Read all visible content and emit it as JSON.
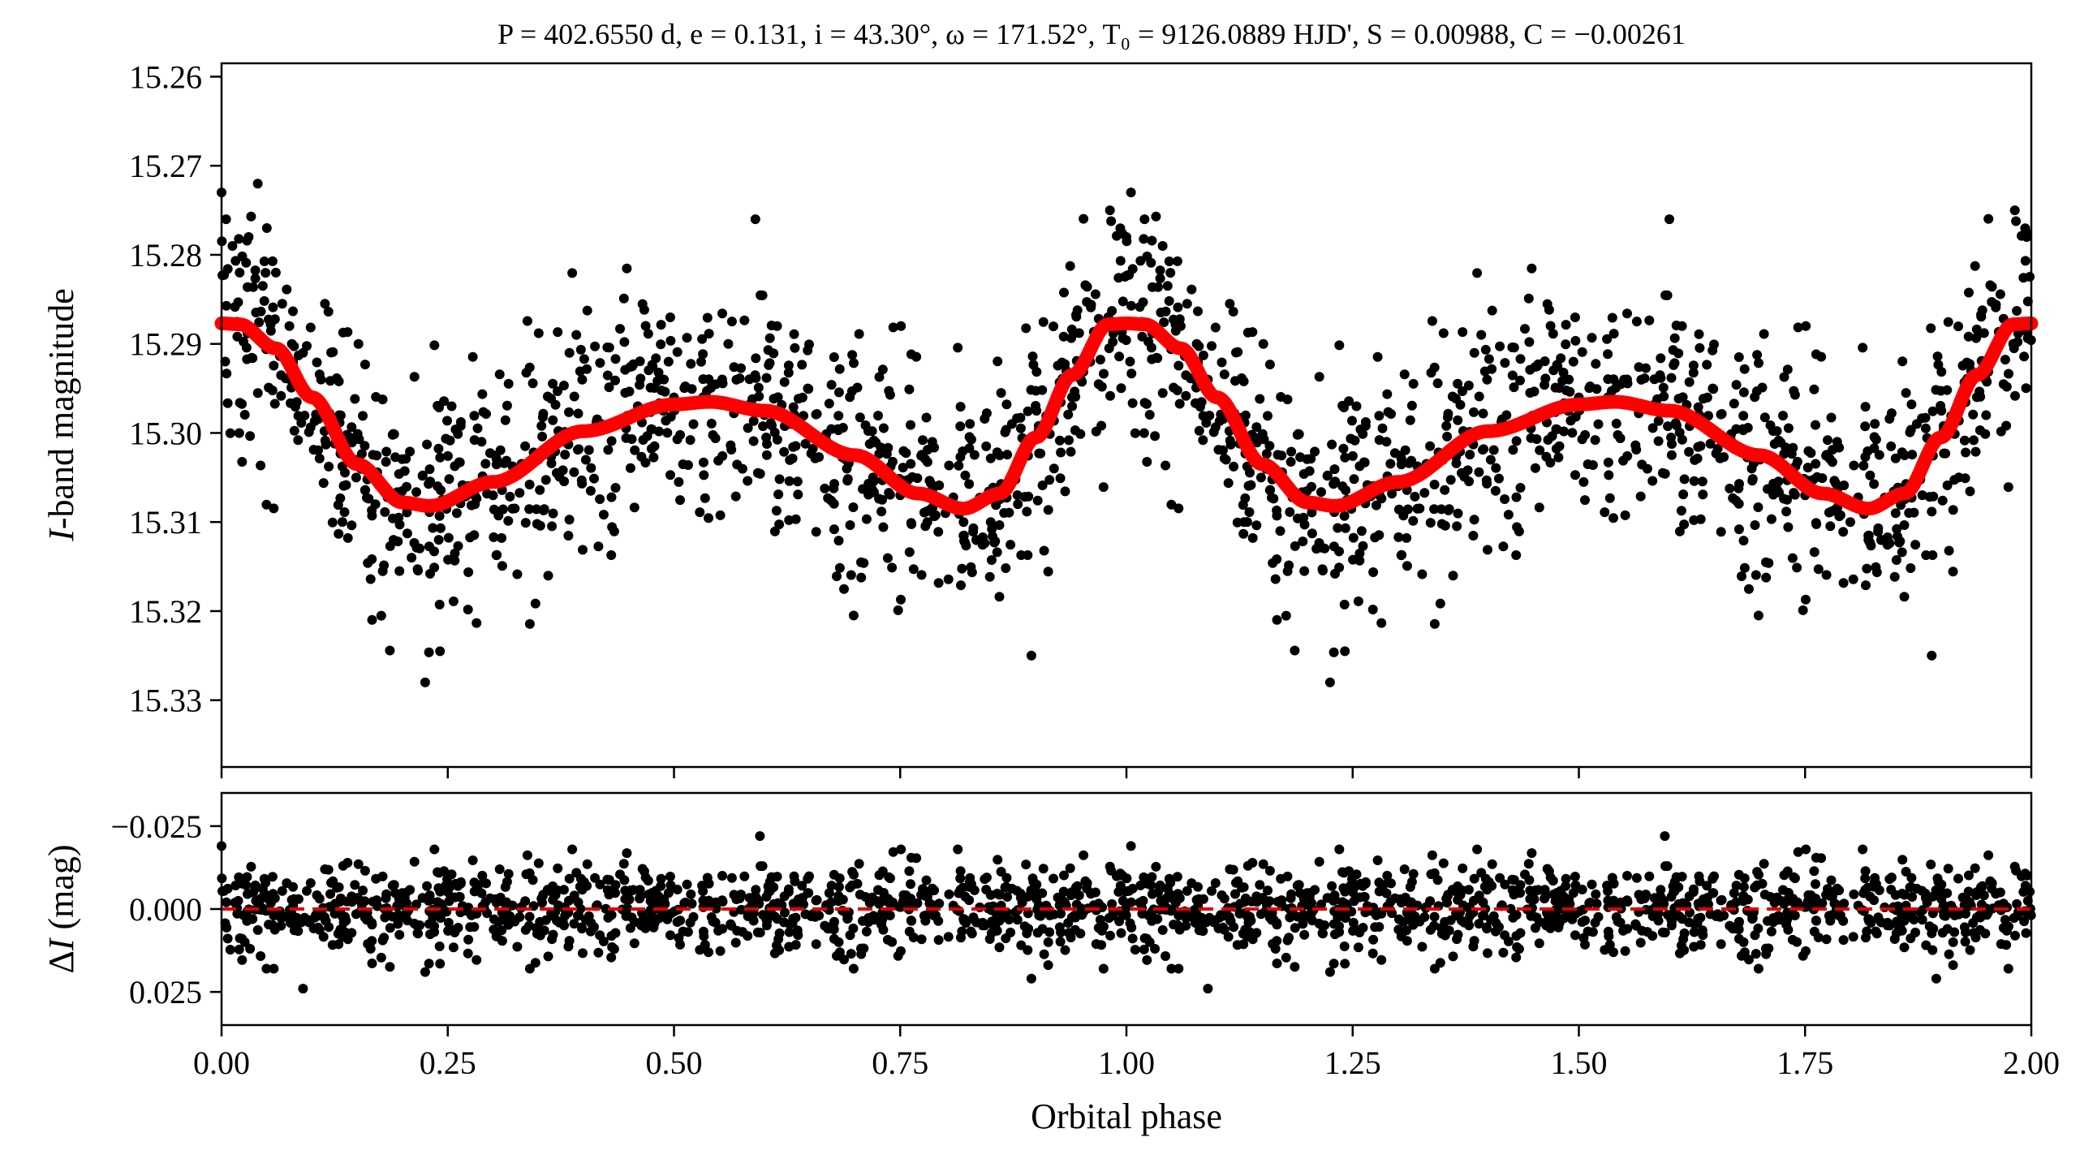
{
  "colors": {
    "points": "#000000",
    "model": "#ff0000",
    "zero_line": "#e00000",
    "axes": "#000000"
  },
  "chart_data": [
    {
      "type": "scatter",
      "panel": "top",
      "title": "P = 402.6550 d, e = 0.131, i = 43.30°, ω = 171.52°, T₀ = 9126.0889 HJD', S = 0.00988, C = −0.00261",
      "xlabel": "",
      "ylabel": "I-band magnitude",
      "xlim": [
        0.0,
        2.0
      ],
      "ylim": [
        15.3375,
        15.2585
      ],
      "y_inverted": true,
      "yticks": [
        15.26,
        15.27,
        15.28,
        15.29,
        15.3,
        15.31,
        15.32,
        15.33
      ],
      "ytick_labels": [
        "15.26",
        "15.27",
        "15.28",
        "15.29",
        "15.30",
        "15.31",
        "15.32",
        "15.33"
      ],
      "xticks": [
        0.0,
        0.25,
        0.5,
        0.75,
        1.0,
        1.25,
        1.5,
        1.75,
        2.0
      ],
      "series": [
        {
          "kind": "points",
          "x": [
            0.0,
            0.005,
            0.012,
            0.02,
            0.03,
            0.04,
            0.05,
            0.06,
            0.075,
            0.09,
            0.11,
            0.13,
            0.15,
            0.17,
            0.19,
            0.21,
            0.225,
            0.24,
            0.26,
            0.28,
            0.3,
            0.32,
            0.35,
            0.38,
            0.42,
            0.46,
            0.5,
            0.53,
            0.56,
            0.59,
            0.6,
            0.63,
            0.66,
            0.69,
            0.72,
            0.75,
            0.78,
            0.8,
            0.82,
            0.85,
            0.88,
            0.895,
            0.92,
            0.94,
            0.96,
            0.98,
            1.0,
            1.005,
            1.02,
            1.04,
            1.06,
            1.09,
            1.11,
            1.13,
            1.17,
            1.21,
            1.225,
            1.26,
            1.3,
            1.35,
            1.42,
            1.5,
            1.55,
            1.6,
            1.65,
            1.7,
            1.75,
            1.8,
            1.82,
            1.85,
            1.89,
            1.92,
            1.95,
            1.98,
            1.995
          ],
          "y": [
            15.273,
            15.276,
            15.279,
            15.282,
            15.278,
            15.272,
            15.277,
            15.282,
            15.288,
            15.291,
            15.294,
            15.298,
            15.303,
            15.308,
            15.312,
            15.314,
            15.328,
            15.312,
            15.309,
            15.308,
            15.307,
            15.305,
            15.303,
            15.301,
            15.299,
            15.297,
            15.296,
            15.292,
            15.29,
            15.276,
            15.298,
            15.299,
            15.301,
            15.303,
            15.305,
            15.307,
            15.31,
            15.309,
            15.31,
            15.31,
            15.308,
            15.325,
            15.304,
            15.297,
            15.292,
            15.287,
            15.278,
            15.273,
            15.276,
            15.279,
            15.288,
            15.294,
            15.303,
            15.31,
            15.311,
            15.313,
            15.328,
            15.311,
            15.306,
            15.303,
            15.298,
            15.296,
            15.294,
            15.276,
            15.3,
            15.303,
            15.307,
            15.31,
            15.312,
            15.309,
            15.325,
            15.305,
            15.298,
            15.29,
            15.278
          ]
        },
        {
          "kind": "model_curve",
          "name": "",
          "phase_knots": [
            0.0,
            0.02,
            0.06,
            0.1,
            0.15,
            0.2,
            0.23,
            0.3,
            0.4,
            0.5,
            0.54,
            0.6,
            0.7,
            0.77,
            0.82,
            0.86,
            0.9,
            0.94,
            0.98,
            1.0
          ],
          "magnitude_knots": [
            15.2877,
            15.2878,
            15.2905,
            15.296,
            15.3035,
            15.3078,
            15.3082,
            15.3055,
            15.2998,
            15.2968,
            15.2965,
            15.2975,
            15.3025,
            15.3068,
            15.3085,
            15.3068,
            15.3005,
            15.2935,
            15.2878,
            15.2877
          ]
        }
      ]
    },
    {
      "type": "scatter",
      "panel": "bottom",
      "xlabel": "Orbital phase",
      "ylabel": "ΔI (mag)",
      "xlim": [
        0.0,
        2.0
      ],
      "ylim": [
        0.035,
        -0.035
      ],
      "y_inverted": true,
      "yticks": [
        -0.025,
        0.0,
        0.025
      ],
      "ytick_labels": [
        "−0.025",
        "0.000",
        "0.025"
      ],
      "xticks": [
        0.0,
        0.25,
        0.5,
        0.75,
        1.0,
        1.25,
        1.5,
        1.75,
        2.0
      ],
      "xtick_labels": [
        "0.00",
        "0.25",
        "0.50",
        "0.75",
        "1.00",
        "1.25",
        "1.50",
        "1.75",
        "2.00"
      ],
      "zero_line": 0.0,
      "residual_scatter_mag": 0.0065,
      "highlight_points": {
        "x": [
          0.0,
          0.09,
          0.225,
          0.595,
          0.895,
          1.005,
          1.09,
          1.225,
          1.595,
          1.895
        ],
        "y": [
          -0.019,
          0.024,
          0.019,
          -0.022,
          0.021,
          -0.019,
          0.024,
          0.019,
          -0.022,
          0.021
        ]
      }
    }
  ]
}
